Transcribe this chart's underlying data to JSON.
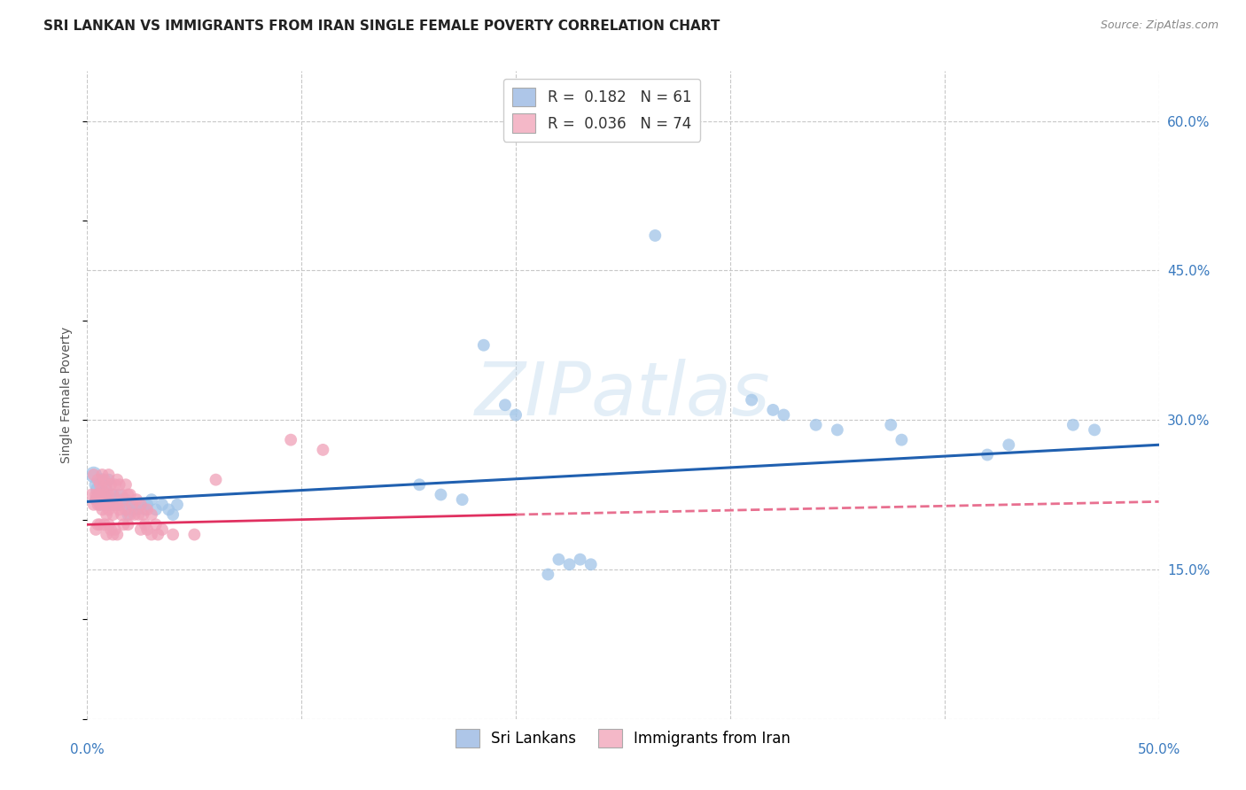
{
  "title": "SRI LANKAN VS IMMIGRANTS FROM IRAN SINGLE FEMALE POVERTY CORRELATION CHART",
  "source": "Source: ZipAtlas.com",
  "ylabel": "Single Female Poverty",
  "xlim": [
    0.0,
    0.5
  ],
  "ylim": [
    0.0,
    0.65
  ],
  "xticks": [
    0.0,
    0.1,
    0.2,
    0.3,
    0.4,
    0.5
  ],
  "xticklabels": [
    "0.0%",
    "",
    "",
    "",
    "",
    "50.0%"
  ],
  "yticks": [
    0.0,
    0.15,
    0.3,
    0.45,
    0.6
  ],
  "yticklabels": [
    "",
    "15.0%",
    "30.0%",
    "45.0%",
    "60.0%"
  ],
  "background_color": "#ffffff",
  "grid_color": "#c8c8c8",
  "watermark_text": "ZIPatlas",
  "legend_entries": [
    {
      "label": "R =  0.182   N = 61",
      "color": "#aec6e8"
    },
    {
      "label": "R =  0.036   N = 74",
      "color": "#f4b8c8"
    }
  ],
  "series": [
    {
      "name": "Sri Lankans",
      "color": "#a0c4e8",
      "line_color": "#2060b0",
      "line_style": "-",
      "trend_x": [
        0.0,
        0.5
      ],
      "trend_y": [
        0.218,
        0.275
      ],
      "points": [
        [
          0.003,
          0.245
        ],
        [
          0.004,
          0.235
        ],
        [
          0.004,
          0.22
        ],
        [
          0.005,
          0.23
        ],
        [
          0.006,
          0.22
        ],
        [
          0.006,
          0.215
        ],
        [
          0.007,
          0.24
        ],
        [
          0.007,
          0.225
        ],
        [
          0.008,
          0.22
        ],
        [
          0.008,
          0.215
        ],
        [
          0.009,
          0.23
        ],
        [
          0.009,
          0.22
        ],
        [
          0.01,
          0.24
        ],
        [
          0.01,
          0.215
        ],
        [
          0.011,
          0.22
        ],
        [
          0.012,
          0.215
        ],
        [
          0.012,
          0.225
        ],
        [
          0.013,
          0.22
        ],
        [
          0.014,
          0.215
        ],
        [
          0.015,
          0.225
        ],
        [
          0.015,
          0.215
        ],
        [
          0.016,
          0.22
        ],
        [
          0.017,
          0.215
        ],
        [
          0.018,
          0.22
        ],
        [
          0.019,
          0.205
        ],
        [
          0.02,
          0.215
        ],
        [
          0.021,
          0.21
        ],
        [
          0.022,
          0.215
        ],
        [
          0.023,
          0.21
        ],
        [
          0.025,
          0.215
        ],
        [
          0.027,
          0.21
        ],
        [
          0.028,
          0.215
        ],
        [
          0.03,
          0.22
        ],
        [
          0.032,
          0.21
        ],
        [
          0.035,
          0.215
        ],
        [
          0.038,
          0.21
        ],
        [
          0.04,
          0.205
        ],
        [
          0.042,
          0.215
        ],
        [
          0.155,
          0.235
        ],
        [
          0.165,
          0.225
        ],
        [
          0.175,
          0.22
        ],
        [
          0.185,
          0.375
        ],
        [
          0.195,
          0.315
        ],
        [
          0.2,
          0.305
        ],
        [
          0.215,
          0.145
        ],
        [
          0.22,
          0.16
        ],
        [
          0.225,
          0.155
        ],
        [
          0.23,
          0.16
        ],
        [
          0.235,
          0.155
        ],
        [
          0.265,
          0.485
        ],
        [
          0.31,
          0.32
        ],
        [
          0.32,
          0.31
        ],
        [
          0.325,
          0.305
        ],
        [
          0.34,
          0.295
        ],
        [
          0.35,
          0.29
        ],
        [
          0.375,
          0.295
        ],
        [
          0.38,
          0.28
        ],
        [
          0.42,
          0.265
        ],
        [
          0.43,
          0.275
        ],
        [
          0.46,
          0.295
        ],
        [
          0.47,
          0.29
        ]
      ],
      "sizes": [
        180,
        120,
        100,
        150,
        120,
        100,
        110,
        100,
        100,
        100,
        100,
        100,
        100,
        100,
        100,
        100,
        100,
        100,
        100,
        100,
        100,
        100,
        100,
        100,
        100,
        100,
        100,
        100,
        100,
        100,
        100,
        100,
        100,
        100,
        100,
        100,
        100,
        100,
        100,
        100,
        100,
        100,
        100,
        100,
        100,
        100,
        100,
        100,
        100,
        100,
        100,
        100,
        100,
        100,
        100,
        100,
        100,
        100,
        100,
        100,
        100
      ]
    },
    {
      "name": "Immigrants from Iran",
      "color": "#f0a0b8",
      "line_color": "#e03060",
      "line_style": "-",
      "line_color2": "#e87090",
      "trend_x": [
        0.0,
        0.2,
        0.5
      ],
      "trend_y": [
        0.195,
        0.205,
        0.218
      ],
      "trend_solid_end": 0.2,
      "points": [
        [
          0.002,
          0.225
        ],
        [
          0.003,
          0.245
        ],
        [
          0.003,
          0.215
        ],
        [
          0.004,
          0.225
        ],
        [
          0.004,
          0.22
        ],
        [
          0.004,
          0.19
        ],
        [
          0.005,
          0.24
        ],
        [
          0.005,
          0.225
        ],
        [
          0.005,
          0.215
        ],
        [
          0.005,
          0.195
        ],
        [
          0.006,
          0.235
        ],
        [
          0.006,
          0.225
        ],
        [
          0.006,
          0.215
        ],
        [
          0.006,
          0.195
        ],
        [
          0.007,
          0.245
        ],
        [
          0.007,
          0.23
        ],
        [
          0.007,
          0.22
        ],
        [
          0.007,
          0.21
        ],
        [
          0.008,
          0.24
        ],
        [
          0.008,
          0.225
        ],
        [
          0.008,
          0.215
        ],
        [
          0.008,
          0.195
        ],
        [
          0.009,
          0.235
        ],
        [
          0.009,
          0.22
        ],
        [
          0.009,
          0.205
        ],
        [
          0.009,
          0.185
        ],
        [
          0.01,
          0.245
        ],
        [
          0.01,
          0.225
        ],
        [
          0.01,
          0.21
        ],
        [
          0.01,
          0.195
        ],
        [
          0.011,
          0.235
        ],
        [
          0.011,
          0.215
        ],
        [
          0.011,
          0.19
        ],
        [
          0.012,
          0.225
        ],
        [
          0.012,
          0.205
        ],
        [
          0.012,
          0.185
        ],
        [
          0.013,
          0.235
        ],
        [
          0.013,
          0.215
        ],
        [
          0.013,
          0.19
        ],
        [
          0.014,
          0.24
        ],
        [
          0.014,
          0.215
        ],
        [
          0.014,
          0.185
        ],
        [
          0.015,
          0.235
        ],
        [
          0.015,
          0.21
        ],
        [
          0.016,
          0.225
        ],
        [
          0.016,
          0.205
        ],
        [
          0.017,
          0.22
        ],
        [
          0.017,
          0.195
        ],
        [
          0.018,
          0.235
        ],
        [
          0.018,
          0.21
        ],
        [
          0.019,
          0.225
        ],
        [
          0.019,
          0.195
        ],
        [
          0.02,
          0.225
        ],
        [
          0.02,
          0.205
        ],
        [
          0.021,
          0.215
        ],
        [
          0.022,
          0.205
        ],
        [
          0.023,
          0.22
        ],
        [
          0.024,
          0.205
        ],
        [
          0.025,
          0.215
        ],
        [
          0.025,
          0.19
        ],
        [
          0.026,
          0.205
        ],
        [
          0.027,
          0.195
        ],
        [
          0.028,
          0.21
        ],
        [
          0.028,
          0.19
        ],
        [
          0.03,
          0.205
        ],
        [
          0.03,
          0.185
        ],
        [
          0.032,
          0.195
        ],
        [
          0.033,
          0.185
        ],
        [
          0.035,
          0.19
        ],
        [
          0.04,
          0.185
        ],
        [
          0.05,
          0.185
        ],
        [
          0.06,
          0.24
        ],
        [
          0.095,
          0.28
        ],
        [
          0.11,
          0.27
        ]
      ],
      "sizes": [
        100,
        100,
        100,
        100,
        100,
        100,
        100,
        100,
        100,
        100,
        100,
        100,
        100,
        100,
        100,
        100,
        100,
        100,
        100,
        100,
        100,
        100,
        100,
        100,
        100,
        100,
        100,
        100,
        100,
        100,
        100,
        100,
        100,
        100,
        100,
        100,
        100,
        100,
        100,
        100,
        100,
        100,
        100,
        100,
        100,
        100,
        100,
        100,
        100,
        100,
        100,
        100,
        100,
        100,
        100,
        100,
        100,
        100,
        100,
        100,
        100,
        100,
        100,
        100,
        100,
        100,
        100,
        100,
        100,
        100,
        100,
        100,
        100,
        100
      ]
    }
  ],
  "legend_labels": [
    "Sri Lankans",
    "Immigrants from Iran"
  ],
  "legend_colors": [
    "#aec6e8",
    "#f4b8c8"
  ],
  "title_fontsize": 11,
  "axis_label_fontsize": 10,
  "tick_fontsize": 11,
  "right_tick_color": "#3a7abf",
  "source_color": "#888888"
}
